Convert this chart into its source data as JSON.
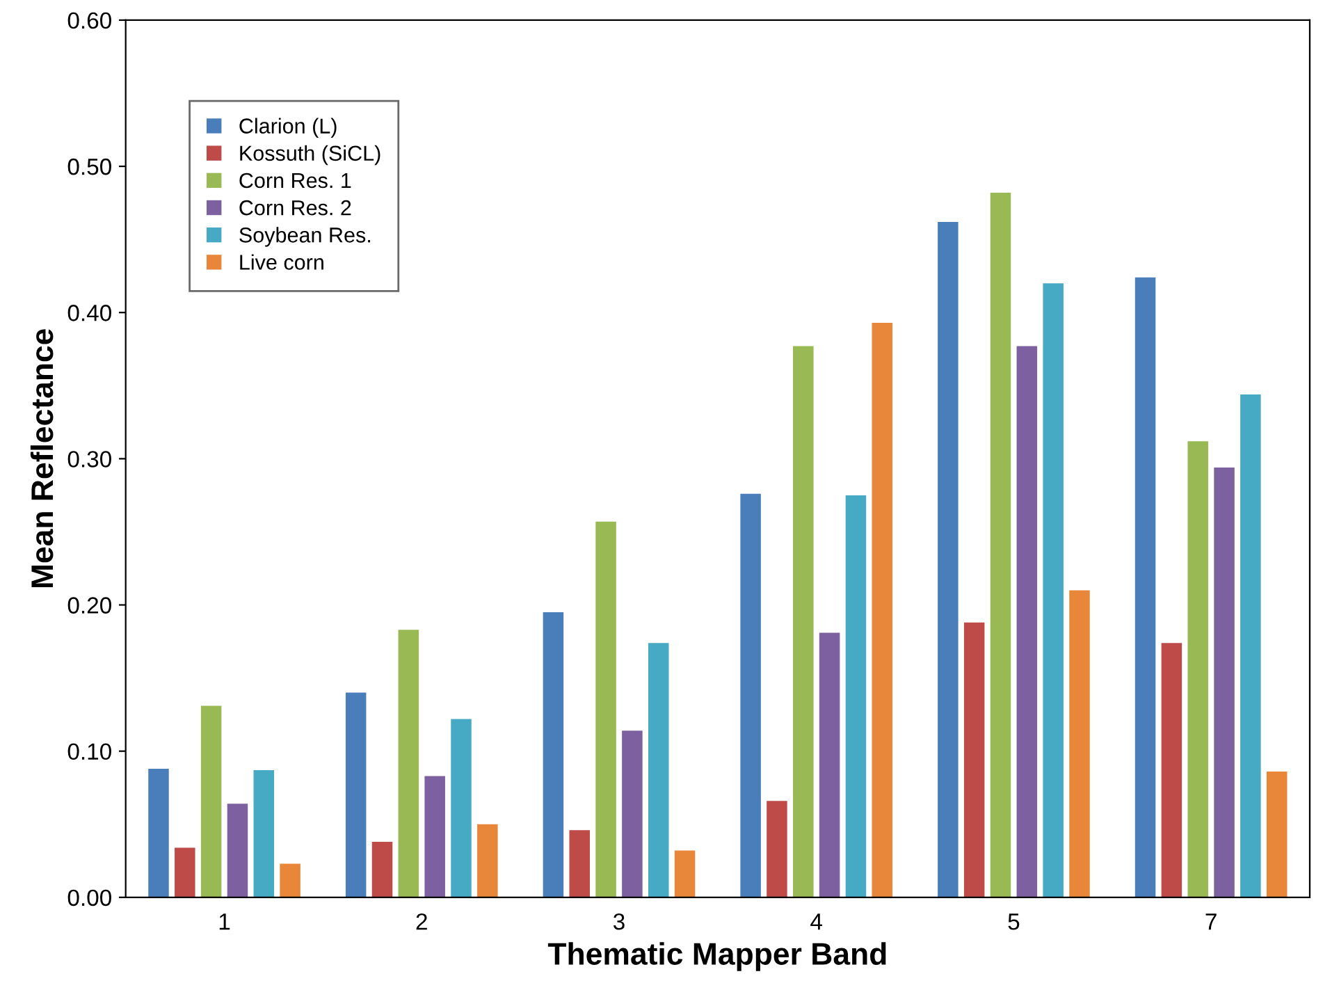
{
  "chart_data": {
    "type": "bar",
    "xlabel": "Thematic Mapper Band",
    "ylabel": "Mean Reflectance",
    "categories": [
      "1",
      "2",
      "3",
      "4",
      "5",
      "7"
    ],
    "series": [
      {
        "name": "Clarion (L)",
        "color": "#4a7ebb",
        "values": [
          0.088,
          0.14,
          0.195,
          0.276,
          0.462,
          0.424
        ]
      },
      {
        "name": "Kossuth (SiCL)",
        "color": "#be4b48",
        "values": [
          0.034,
          0.038,
          0.046,
          0.066,
          0.188,
          0.174
        ]
      },
      {
        "name": "Corn Res. 1",
        "color": "#98b954",
        "values": [
          0.131,
          0.183,
          0.257,
          0.377,
          0.482,
          0.312
        ]
      },
      {
        "name": "Corn Res. 2",
        "color": "#7d60a0",
        "values": [
          0.064,
          0.083,
          0.114,
          0.181,
          0.377,
          0.294
        ]
      },
      {
        "name": "Soybean Res.",
        "color": "#46aac5",
        "values": [
          0.087,
          0.122,
          0.174,
          0.275,
          0.42,
          0.344
        ]
      },
      {
        "name": "Live corn",
        "color": "#e8873a",
        "values": [
          0.023,
          0.05,
          0.032,
          0.393,
          0.21,
          0.086
        ]
      }
    ],
    "ylim": [
      0,
      0.6
    ],
    "yticks": [
      {
        "value": 0,
        "label": "0.00"
      },
      {
        "value": 0.1,
        "label": "0.10"
      },
      {
        "value": 0.2,
        "label": "0.20"
      },
      {
        "value": 0.3,
        "label": "0.30"
      },
      {
        "value": 0.4,
        "label": "0.40"
      },
      {
        "value": 0.5,
        "label": "0.50"
      },
      {
        "value": 0.6,
        "label": "0.60"
      }
    ],
    "grid": false,
    "legend": "top left"
  }
}
